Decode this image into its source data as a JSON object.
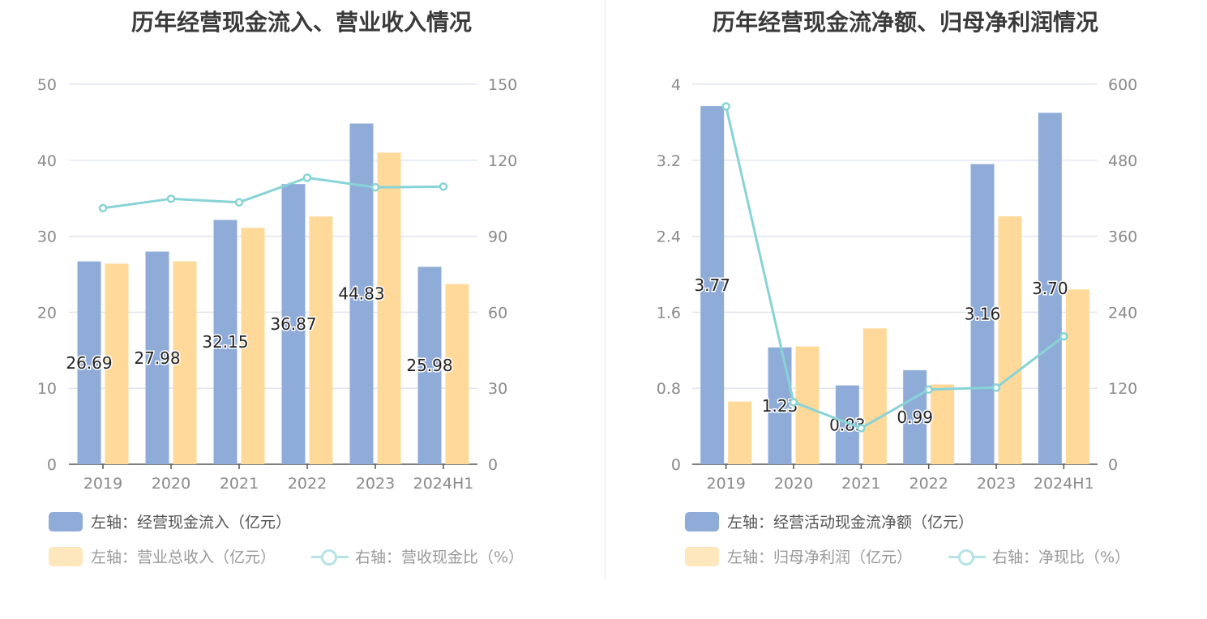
{
  "chart_data": [
    {
      "type": "bar",
      "title": "历年经营现金流入、营业收入情况",
      "categories": [
        "2019",
        "2020",
        "2021",
        "2022",
        "2023",
        "2024H1"
      ],
      "left_axis": {
        "ticks": [
          "0",
          "10",
          "20",
          "30",
          "40",
          "50"
        ],
        "range": [
          0,
          50
        ]
      },
      "right_axis": {
        "ticks": [
          "0",
          "30",
          "60",
          "90",
          "120",
          "150"
        ],
        "range": [
          0,
          150
        ]
      },
      "series": [
        {
          "name": "左轴：经营现金流入（亿元）",
          "axis": "left",
          "kind": "bar",
          "color": "#8facd9",
          "values": [
            26.69,
            27.98,
            32.15,
            36.87,
            44.83,
            25.98
          ],
          "labels": [
            "26.69",
            "27.98",
            "32.15",
            "36.87",
            "44.83",
            "25.98"
          ]
        },
        {
          "name": "左轴：营业总收入（亿元）",
          "axis": "left",
          "kind": "bar",
          "color": "#ffd99a",
          "values": [
            26.4,
            26.7,
            31.1,
            32.6,
            41.0,
            23.7
          ]
        },
        {
          "name": "右轴：营收现金比（%）",
          "axis": "right",
          "kind": "line",
          "color": "#88d3d6",
          "values": [
            101.1,
            104.8,
            103.4,
            113.1,
            109.3,
            109.6
          ]
        }
      ]
    },
    {
      "type": "bar",
      "title": "历年经营现金流净额、归母净利润情况",
      "categories": [
        "2019",
        "2020",
        "2021",
        "2022",
        "2023",
        "2024H1"
      ],
      "left_axis": {
        "ticks": [
          "0",
          "0.8",
          "1.6",
          "2.4",
          "3.2",
          "4"
        ],
        "range": [
          0,
          4
        ]
      },
      "right_axis": {
        "ticks": [
          "0",
          "120",
          "240",
          "360",
          "480",
          "600"
        ],
        "range": [
          0,
          600
        ]
      },
      "series": [
        {
          "name": "左轴：经营活动现金流净额（亿元）",
          "axis": "left",
          "kind": "bar",
          "color": "#8facd9",
          "values": [
            3.77,
            1.23,
            0.83,
            0.99,
            3.16,
            3.7
          ],
          "labels": [
            "3.77",
            "1.23",
            "0.83",
            "0.99",
            "3.16",
            "3.70"
          ]
        },
        {
          "name": "左轴：归母净利润（亿元）",
          "axis": "left",
          "kind": "bar",
          "color": "#ffd99a",
          "values": [
            0.66,
            1.24,
            1.43,
            0.84,
            2.61,
            1.84
          ]
        },
        {
          "name": "右轴：净现比（%）",
          "axis": "right",
          "kind": "line",
          "color": "#88d3d6",
          "values": [
            565,
            98,
            57,
            118,
            121,
            202
          ]
        }
      ]
    }
  ]
}
